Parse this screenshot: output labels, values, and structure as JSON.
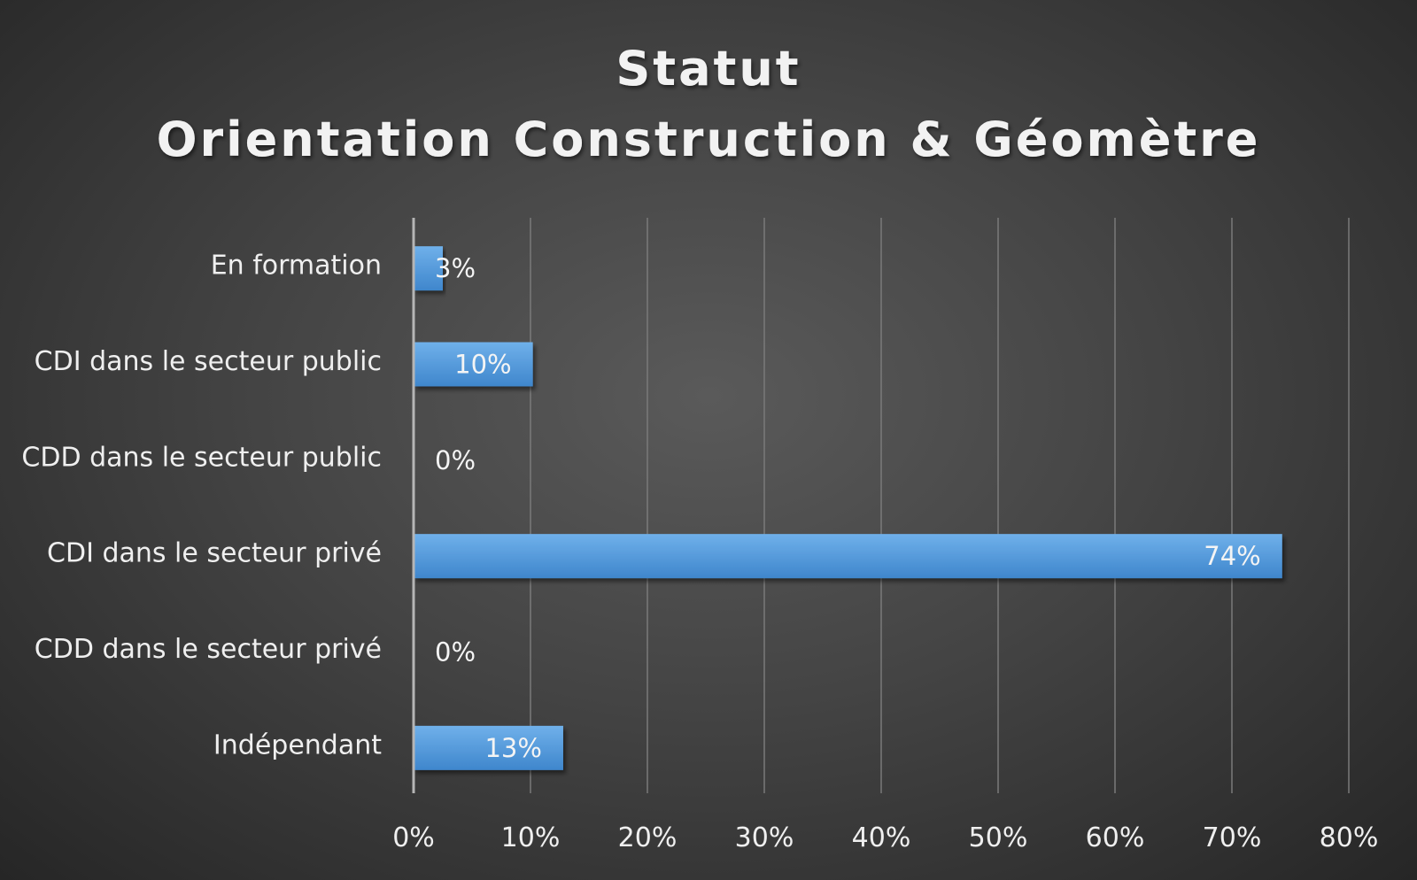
{
  "chart_data": {
    "type": "bar",
    "orientation": "horizontal",
    "title_lines": [
      "Statut",
      "Orientation Construction & Géomètre"
    ],
    "categories": [
      "En formation",
      "CDI dans le secteur public",
      "CDD dans le secteur public",
      "CDI dans le secteur privé",
      "CDD dans le secteur privé",
      "Indépendant"
    ],
    "values": [
      2.5,
      10.2,
      0,
      74.3,
      0,
      12.8
    ],
    "data_labels": [
      "3%",
      "10%",
      "0%",
      "74%",
      "0%",
      "13%"
    ],
    "xlim": [
      0,
      80
    ],
    "ticks": [
      0,
      10,
      20,
      30,
      40,
      50,
      60,
      70,
      80
    ],
    "tick_labels": [
      "0%",
      "10%",
      "20%",
      "30%",
      "40%",
      "50%",
      "60%",
      "70%",
      "80%"
    ],
    "grid": true,
    "legend": "none",
    "bar_color": "#5b9bd5",
    "bar_color_light": "#6aa8e0"
  }
}
